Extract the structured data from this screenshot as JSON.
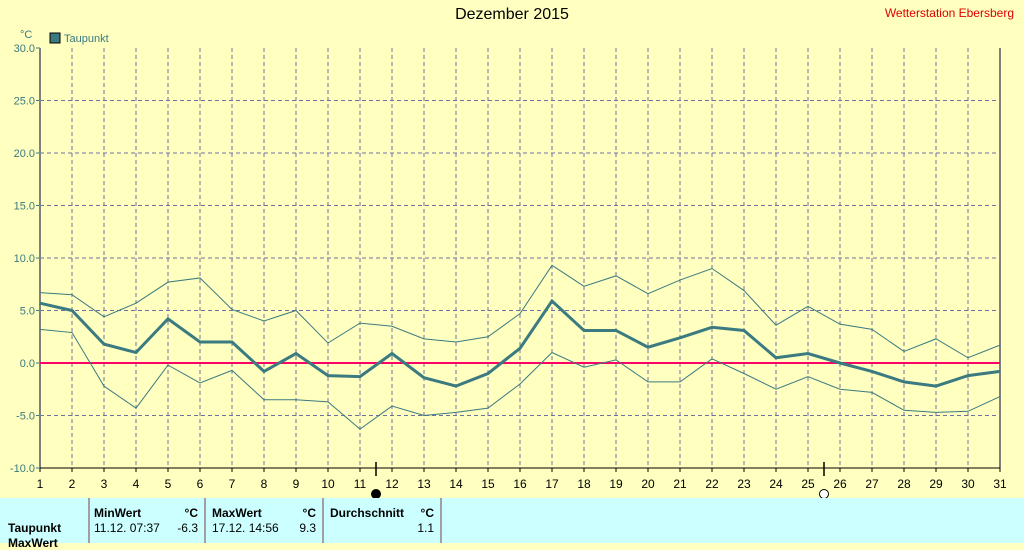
{
  "title": "Dezember 2015",
  "station": "Wetterstation Ebersberg",
  "chart_data": {
    "type": "line",
    "title": "Dezember 2015",
    "ylabel": "°C",
    "ylim": [
      -10,
      30
    ],
    "yticks": [
      "30.0",
      "25.0",
      "20.0",
      "15.0",
      "10.0",
      "5.0",
      "0.0",
      "-5.0",
      "-10.0"
    ],
    "xlim": [
      1,
      31
    ],
    "categories": [
      1,
      2,
      3,
      4,
      5,
      6,
      7,
      8,
      9,
      10,
      11,
      12,
      13,
      14,
      15,
      16,
      17,
      18,
      19,
      20,
      21,
      22,
      23,
      24,
      25,
      26,
      27,
      28,
      29,
      30,
      31
    ],
    "grid": true,
    "legend": "top-left",
    "legend_label": "Taupunkt",
    "series": [
      {
        "name": "Taupunkt",
        "color": "#3a7a80",
        "values": [
          5.7,
          5.0,
          1.8,
          1.0,
          4.2,
          2.0,
          2.0,
          -0.8,
          0.9,
          -1.2,
          -1.3,
          0.9,
          -1.4,
          -2.2,
          -1.0,
          1.4,
          5.9,
          3.1,
          3.1,
          1.5,
          2.4,
          3.4,
          3.1,
          0.5,
          0.9,
          0.0,
          -0.8,
          -1.8,
          -2.2,
          -1.2,
          -0.8
        ]
      },
      {
        "values": [
          6.7,
          6.5,
          4.4,
          5.7,
          7.7,
          8.1,
          5.1,
          4.0,
          5.0,
          1.9,
          3.8,
          3.5,
          2.3,
          2.0,
          2.5,
          4.7,
          9.3,
          7.3,
          8.3,
          6.6,
          7.9,
          9.0,
          6.9,
          3.6,
          5.4,
          3.7,
          3.2,
          1.1,
          2.3,
          0.5,
          1.7
        ],
        "color": "#3a7a80"
      },
      {
        "values": [
          3.2,
          2.9,
          -2.2,
          -4.3,
          -0.2,
          -1.9,
          -0.7,
          -3.5,
          -3.5,
          -3.7,
          -6.3,
          -4.1,
          -5.0,
          -4.7,
          -4.3,
          -2.0,
          1.0,
          -0.4,
          0.3,
          -1.8,
          -1.8,
          0.4,
          -1.0,
          -2.5,
          -1.3,
          -2.5,
          -2.8,
          -4.5,
          -4.7,
          -4.6,
          -3.2
        ],
        "color": "#3a7a80"
      }
    ],
    "zero_line_color": "#ff0066",
    "moon_phases": [
      {
        "day": 11.5,
        "phase": "new-moon"
      },
      {
        "day": 25.5,
        "phase": "full-moon"
      }
    ]
  },
  "table": {
    "row_label": "Taupunkt",
    "row_label_2": "MaxWert",
    "min_header": "MinWert",
    "min_unit": "°C",
    "min_time": "11.12.  07:37",
    "min_value": "-6.3",
    "max_header": "MaxWert",
    "max_unit": "°C",
    "max_time": "17.12.  14:56",
    "max_value": "9.3",
    "avg_header": "Durchschnitt",
    "avg_unit": "°C",
    "avg_value": "1.1"
  }
}
